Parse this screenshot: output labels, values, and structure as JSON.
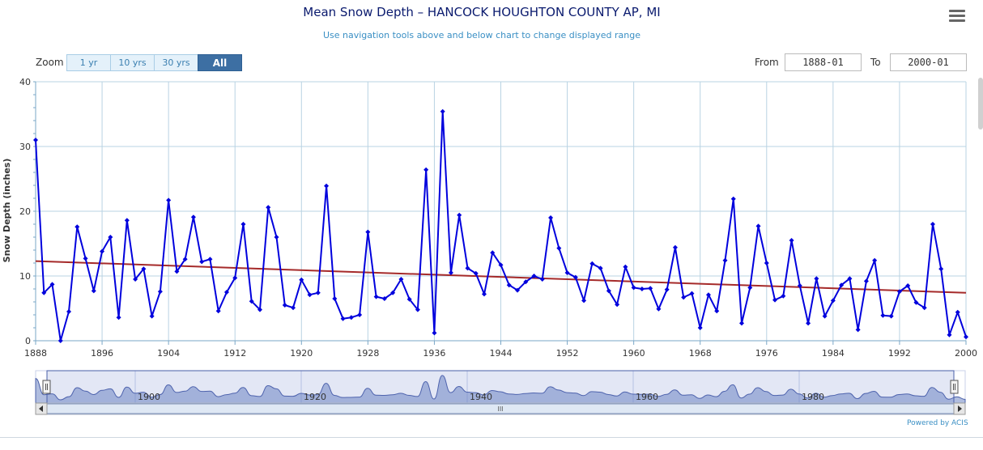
{
  "header": {
    "title": "Mean Snow Depth – HANCOCK HOUGHTON COUNTY AP, MI",
    "subtitle": "Use navigation tools above and below chart to change displayed range",
    "menu_icon": "hamburger-menu-icon"
  },
  "zoom": {
    "label": "Zoom",
    "buttons": [
      "1 yr",
      "10 yrs",
      "30 yrs",
      "All"
    ],
    "selected": "All"
  },
  "range": {
    "from_label": "From",
    "from_value": "1888-01",
    "to_label": "To",
    "to_value": "2000-01"
  },
  "navigator": {
    "labels": [
      "1900",
      "1920",
      "1940",
      "1960",
      "1980"
    ],
    "scroll_grip": "III"
  },
  "footer": {
    "powered_by": "Powered by ACIS"
  },
  "colors": {
    "series": "#0000dd",
    "trend": "#a52a2a",
    "navigator_fill": "#6f86c4",
    "grid": "#b9d3e3"
  },
  "chart_data": {
    "type": "line",
    "title": "Mean Snow Depth – HANCOCK HOUGHTON COUNTY AP, MI",
    "ylabel": "Snow Depth (inches)",
    "xlabel": "",
    "xlim": [
      1888,
      2000
    ],
    "ylim": [
      0,
      40
    ],
    "x_ticks": [
      "1888",
      "1896",
      "1904",
      "1912",
      "1920",
      "1928",
      "1936",
      "1944",
      "1952",
      "1960",
      "1968",
      "1976",
      "1984",
      "1992",
      "2000"
    ],
    "y_ticks": [
      "0",
      "10",
      "20",
      "30",
      "40"
    ],
    "grid": true,
    "legend": "none",
    "series": [
      {
        "x": [
          1888,
          1889,
          1890,
          1891,
          1892,
          1893,
          1894,
          1895,
          1896,
          1897,
          1898,
          1899,
          1900,
          1901,
          1902,
          1903,
          1904,
          1905,
          1906,
          1907,
          1908,
          1909,
          1910,
          1911,
          1912,
          1913,
          1914,
          1915,
          1916,
          1917,
          1918,
          1919,
          1920,
          1921,
          1922,
          1923,
          1924,
          1925,
          1926,
          1927,
          1928,
          1929,
          1930,
          1931,
          1932,
          1933,
          1934,
          1935,
          1936,
          1937,
          1938,
          1939,
          1940,
          1941,
          1942,
          1943,
          1944,
          1945,
          1946,
          1947,
          1948,
          1949,
          1950,
          1951,
          1952,
          1953,
          1954,
          1955,
          1956,
          1957,
          1958,
          1959,
          1960,
          1961,
          1962,
          1963,
          1964,
          1965,
          1966,
          1967,
          1968,
          1969,
          1970,
          1971,
          1972,
          1973,
          1974,
          1975,
          1976,
          1977,
          1978,
          1979,
          1980,
          1981,
          1982,
          1983,
          1984,
          1985,
          1986,
          1987,
          1988,
          1989,
          1990,
          1991,
          1992,
          1993,
          1994,
          1995,
          1996,
          1997,
          1998,
          1999,
          2000
        ],
        "values": [
          31.0,
          7.4,
          8.7,
          0.0,
          4.5,
          17.6,
          12.7,
          7.7,
          13.8,
          16.0,
          3.6,
          18.6,
          9.5,
          11.1,
          3.8,
          7.6,
          21.7,
          10.7,
          12.6,
          19.1,
          12.2,
          12.6,
          4.6,
          7.5,
          9.7,
          18.0,
          6.1,
          4.8,
          20.6,
          16.0,
          5.5,
          5.1,
          9.4,
          7.1,
          7.4,
          23.9,
          6.5,
          3.4,
          3.6,
          4.0,
          16.8,
          6.8,
          6.5,
          7.4,
          9.5,
          6.4,
          4.8,
          26.4,
          1.2,
          35.4,
          10.5,
          19.4,
          11.2,
          10.4,
          7.2,
          13.6,
          11.7,
          8.6,
          7.8,
          9.1,
          10.0,
          9.5,
          19.0,
          14.3,
          10.5,
          9.8,
          6.2,
          11.9,
          11.2,
          7.7,
          5.6,
          11.4,
          8.2,
          8.0,
          8.1,
          4.9,
          7.9,
          14.4,
          6.7,
          7.3,
          2.0,
          7.1,
          4.6,
          12.4,
          21.9,
          2.7,
          8.2,
          17.7,
          12.0,
          6.3,
          6.9,
          15.5,
          8.5,
          2.7,
          9.6,
          3.8,
          6.2,
          8.6,
          9.6,
          1.7,
          9.2,
          12.4,
          3.9,
          3.8,
          7.6,
          8.5,
          5.9,
          5.1,
          18.0,
          11.1,
          0.9,
          4.4,
          0.6
        ]
      },
      {
        "type": "trend",
        "x": [
          1888,
          2000
        ],
        "values": [
          12.3,
          7.4
        ]
      }
    ]
  }
}
